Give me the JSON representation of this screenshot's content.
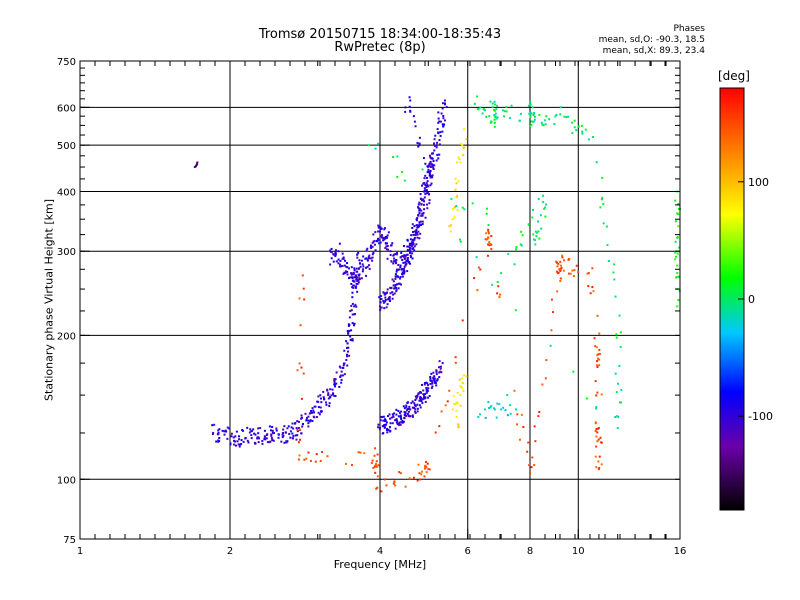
{
  "header": {
    "title_line1": "Tromsø 20150715 18:34:00-18:35:43",
    "title_line2": "RwPretec (8p)",
    "phase_heading": "Phases",
    "phase_o": "mean, sd,O: -90.3, 18.5",
    "phase_x": "mean, sd,X:  89.3, 23.4"
  },
  "chart_data": {
    "type": "scatter",
    "xlabel": "Frequency [MHz]",
    "ylabel": "Stationary phase Virtual Height [km]",
    "x_scale": "log",
    "y_scale": "log",
    "xlim": [
      1,
      16
    ],
    "ylim": [
      75,
      750
    ],
    "x_ticks": [
      1,
      2,
      4,
      6,
      8,
      10,
      16
    ],
    "x_tick_labels": [
      "1",
      "2",
      "4",
      "6",
      "8",
      "10",
      "16"
    ],
    "x_major_gridlines": [
      2,
      4,
      6,
      8,
      10
    ],
    "y_ticks": [
      75,
      100,
      200,
      300,
      400,
      500,
      600,
      750
    ],
    "y_tick_labels": [
      "75",
      "100",
      "200",
      "300",
      "400",
      "500",
      "600",
      "750"
    ],
    "y_major_gridlines": [
      100,
      200,
      300,
      400,
      500,
      600
    ],
    "grid": true,
    "colorbar": {
      "unit": "[deg]",
      "range": [
        -180,
        180
      ],
      "ticks": [
        100,
        0,
        -100
      ],
      "tick_labels": [
        "100",
        "0",
        "-100"
      ],
      "colormap": "rainbow"
    },
    "traces": [
      {
        "note_free": "",
        "phase": -100,
        "points": [
          [
            1.85,
            125
          ],
          [
            1.95,
            124
          ],
          [
            2.05,
            123
          ],
          [
            2.15,
            122
          ],
          [
            2.25,
            124
          ],
          [
            2.35,
            123
          ],
          [
            2.45,
            125
          ],
          [
            2.55,
            124
          ],
          [
            2.65,
            126
          ],
          [
            2.75,
            128
          ],
          [
            2.85,
            133
          ],
          [
            2.95,
            138
          ],
          [
            3.05,
            145
          ],
          [
            3.15,
            150
          ],
          [
            3.25,
            158
          ],
          [
            3.35,
            168
          ],
          [
            3.45,
            185
          ],
          [
            3.5,
            205
          ],
          [
            3.55,
            230
          ],
          [
            3.58,
            265
          ],
          [
            3.6,
            295
          ]
        ]
      },
      {
        "phase": -100,
        "points": [
          [
            3.2,
            290
          ],
          [
            3.3,
            300
          ],
          [
            3.4,
            280
          ],
          [
            3.5,
            270
          ],
          [
            3.6,
            260
          ],
          [
            3.7,
            275
          ],
          [
            3.8,
            290
          ],
          [
            3.9,
            315
          ],
          [
            4.0,
            330
          ],
          [
            4.1,
            320
          ],
          [
            4.2,
            300
          ],
          [
            4.3,
            285
          ],
          [
            4.4,
            280
          ],
          [
            4.5,
            290
          ],
          [
            4.6,
            305
          ],
          [
            4.7,
            320
          ],
          [
            4.8,
            345
          ],
          [
            4.9,
            375
          ],
          [
            5.0,
            410
          ],
          [
            5.1,
            455
          ],
          [
            5.2,
            500
          ],
          [
            5.3,
            560
          ],
          [
            5.4,
            620
          ]
        ]
      },
      {
        "phase": -100,
        "points": [
          [
            4.0,
            230
          ],
          [
            4.1,
            240
          ],
          [
            4.2,
            245
          ],
          [
            4.3,
            255
          ],
          [
            4.4,
            265
          ],
          [
            4.5,
            280
          ],
          [
            4.6,
            300
          ],
          [
            4.7,
            330
          ],
          [
            4.8,
            360
          ],
          [
            4.9,
            400
          ],
          [
            5.0,
            440
          ],
          [
            5.1,
            480
          ]
        ]
      },
      {
        "phase": -100,
        "points": [
          [
            4.0,
            128
          ],
          [
            4.1,
            130
          ],
          [
            4.2,
            131
          ],
          [
            4.3,
            133
          ],
          [
            4.4,
            135
          ],
          [
            4.5,
            138
          ],
          [
            4.6,
            140
          ],
          [
            4.7,
            143
          ],
          [
            4.8,
            146
          ],
          [
            4.9,
            150
          ],
          [
            5.0,
            155
          ],
          [
            5.1,
            160
          ],
          [
            5.2,
            166
          ],
          [
            5.3,
            172
          ]
        ]
      },
      {
        "phase": -100,
        "points": [
          [
            4.5,
            600
          ],
          [
            4.6,
            620
          ],
          [
            4.7,
            560
          ],
          [
            4.8,
            500
          ],
          [
            4.9,
            470
          ]
        ]
      },
      {
        "phase": 80,
        "points": [
          [
            5.55,
            330
          ],
          [
            5.6,
            350
          ],
          [
            5.65,
            370
          ],
          [
            5.7,
            390
          ],
          [
            5.75,
            420
          ],
          [
            5.8,
            460
          ],
          [
            5.85,
            500
          ],
          [
            5.9,
            540
          ]
        ]
      },
      {
        "phase": 80,
        "points": [
          [
            5.6,
            140
          ],
          [
            5.7,
            145
          ],
          [
            5.8,
            150
          ],
          [
            5.85,
            155
          ],
          [
            5.9,
            165
          ],
          [
            5.7,
            135
          ],
          [
            5.75,
            130
          ]
        ]
      },
      {
        "phase": -20,
        "points": [
          [
            6.5,
            140
          ],
          [
            6.8,
            140
          ],
          [
            7.0,
            140
          ],
          [
            7.5,
            140
          ],
          [
            6.3,
            135
          ],
          [
            7.2,
            150
          ]
        ]
      },
      {
        "phase": 20,
        "points": [
          [
            15.8,
            230
          ],
          [
            15.8,
            250
          ],
          [
            15.8,
            280
          ],
          [
            15.8,
            320
          ],
          [
            15.8,
            360
          ],
          [
            15.8,
            400
          ],
          [
            15.8,
            300
          ],
          [
            15.8,
            270
          ]
        ]
      },
      {
        "phase": -140,
        "points": [
          [
            1.7,
            450
          ],
          [
            1.72,
            460
          ]
        ]
      },
      {
        "phase": 150,
        "points": [
          [
            2.8,
            267
          ],
          [
            2.75,
            110
          ],
          [
            3.9,
            112
          ],
          [
            3.95,
            96
          ],
          [
            4.8,
            103
          ],
          [
            5.0,
            105
          ],
          [
            6.6,
            330
          ],
          [
            6.6,
            310
          ],
          [
            8.0,
            103
          ],
          [
            9.1,
            270
          ],
          [
            9.2,
            285
          ],
          [
            10.5,
            270
          ],
          [
            11.0,
            178
          ],
          [
            11.0,
            105
          ],
          [
            11.0,
            128
          ]
        ]
      },
      {
        "phase": 0,
        "points": [
          [
            6.2,
            610
          ],
          [
            6.8,
            590
          ],
          [
            6.7,
            560
          ],
          [
            8.1,
            600
          ],
          [
            8.1,
            560
          ],
          [
            9.2,
            580
          ],
          [
            10.7,
            520
          ],
          [
            12.1,
            220
          ],
          [
            12.0,
            128
          ],
          [
            3.8,
            500
          ],
          [
            8.2,
            310
          ],
          [
            8.5,
            380
          ],
          [
            7.0,
            270
          ]
        ]
      }
    ]
  }
}
